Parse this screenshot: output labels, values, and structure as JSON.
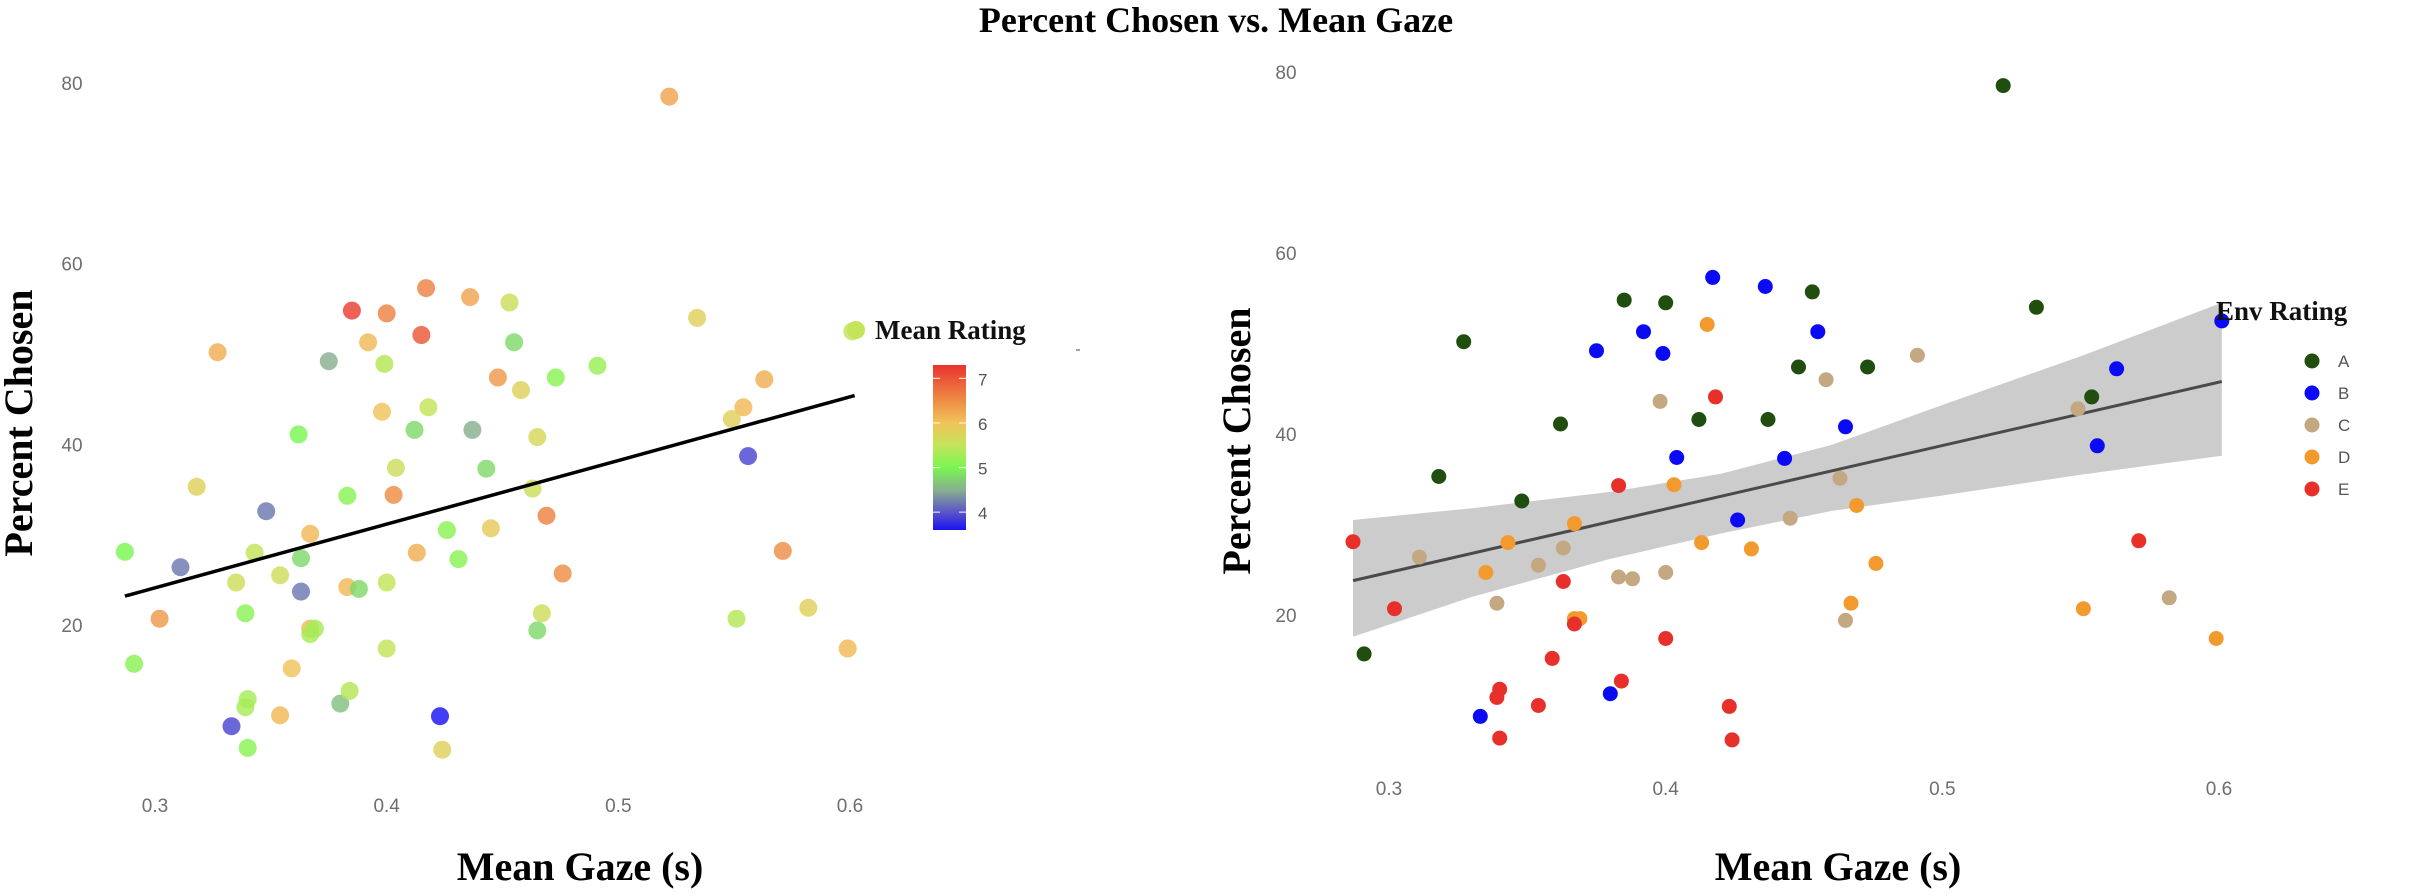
{
  "figure": {
    "title": "Percent Chosen vs. Mean Gaze"
  },
  "chart_data": [
    {
      "id": "left",
      "type": "scatter",
      "title": "",
      "xlabel": "Mean Gaze (s)",
      "ylabel": "Percent Chosen",
      "xlim": [
        0.3,
        0.6
      ],
      "ylim": [
        20,
        80
      ],
      "x_ticks": [
        "0.3",
        "0.4",
        "0.5",
        "0.6"
      ],
      "y_ticks": [
        "20",
        "40",
        "60",
        "80"
      ],
      "grid": false,
      "color_by": "rating",
      "legend": {
        "title": "Mean Rating",
        "type": "colorbar",
        "placement": "right",
        "range": [
          3.6,
          7.3
        ],
        "ticks": [
          "4",
          "5",
          "6",
          "7"
        ],
        "stops": [
          {
            "value": 3.6,
            "color": "#1a12f0"
          },
          {
            "value": 4.0,
            "color": "#5a55c8"
          },
          {
            "value": 4.5,
            "color": "#88b08e"
          },
          {
            "value": 5.0,
            "color": "#7af552"
          },
          {
            "value": 5.5,
            "color": "#c4e45a"
          },
          {
            "value": 6.0,
            "color": "#f0c35a"
          },
          {
            "value": 6.5,
            "color": "#ee8d46"
          },
          {
            "value": 7.3,
            "color": "#e8332e"
          }
        ]
      },
      "fit_line": {
        "x": [
          0.287,
          0.602
        ],
        "y": [
          23.2,
          45.4
        ],
        "color": "#000000"
      }
    },
    {
      "id": "right",
      "type": "scatter",
      "title": "",
      "xlabel": "Mean Gaze (s)",
      "ylabel": "Percent Chosen",
      "xlim": [
        0.3,
        0.6
      ],
      "ylim": [
        20,
        80
      ],
      "x_ticks": [
        "0.3",
        "0.4",
        "0.5",
        "0.6"
      ],
      "y_ticks": [
        "20",
        "40",
        "60",
        "80"
      ],
      "grid": false,
      "color_by": "env",
      "legend": {
        "title": "Env Rating",
        "type": "categorical",
        "placement": "right",
        "entries": [
          {
            "label": "A",
            "color": "#1f4e0f"
          },
          {
            "label": "B",
            "color": "#0a0af5"
          },
          {
            "label": "C",
            "color": "#c4a882"
          },
          {
            "label": "D",
            "color": "#f39a2e"
          },
          {
            "label": "E",
            "color": "#e8302a"
          }
        ]
      },
      "fit_line": {
        "x": [
          0.287,
          0.601
        ],
        "y": [
          23.8,
          45.8
        ],
        "color": "#4a4a4a"
      },
      "confidence_band": {
        "x": [
          0.287,
          0.33,
          0.38,
          0.42,
          0.46,
          0.5,
          0.55,
          0.601
        ],
        "lower": [
          17.6,
          22.0,
          26.2,
          29.0,
          31.5,
          33.2,
          35.5,
          37.6
        ],
        "upper": [
          30.5,
          31.8,
          33.6,
          35.6,
          38.8,
          43.2,
          48.6,
          54.5
        ],
        "color": "#cccccc"
      }
    }
  ],
  "points": [
    {
      "x": 0.522,
      "y": 78.5,
      "env": "A",
      "rating": 6.3
    },
    {
      "x": 0.534,
      "y": 54.0,
      "env": "A",
      "rating": 5.8
    },
    {
      "x": 0.453,
      "y": 55.7,
      "env": "A",
      "rating": 5.6
    },
    {
      "x": 0.385,
      "y": 54.8,
      "env": "A",
      "rating": 7.2
    },
    {
      "x": 0.4,
      "y": 54.5,
      "env": "A",
      "rating": 6.6
    },
    {
      "x": 0.327,
      "y": 50.2,
      "env": "A",
      "rating": 6.2
    },
    {
      "x": 0.448,
      "y": 47.4,
      "env": "A",
      "rating": 6.4
    },
    {
      "x": 0.473,
      "y": 47.4,
      "env": "A",
      "rating": 5.1
    },
    {
      "x": 0.412,
      "y": 41.6,
      "env": "A",
      "rating": 4.8
    },
    {
      "x": 0.437,
      "y": 41.6,
      "env": "A",
      "rating": 4.5
    },
    {
      "x": 0.362,
      "y": 41.1,
      "env": "A",
      "rating": 5.0
    },
    {
      "x": 0.318,
      "y": 35.3,
      "env": "A",
      "rating": 5.8
    },
    {
      "x": 0.348,
      "y": 32.6,
      "env": "A",
      "rating": 4.2
    },
    {
      "x": 0.554,
      "y": 44.1,
      "env": "A",
      "rating": 6.1
    },
    {
      "x": 0.291,
      "y": 15.7,
      "env": "A",
      "rating": 5.1
    },
    {
      "x": 0.417,
      "y": 57.3,
      "env": "B",
      "rating": 6.6
    },
    {
      "x": 0.436,
      "y": 56.3,
      "env": "B",
      "rating": 6.3
    },
    {
      "x": 0.392,
      "y": 51.3,
      "env": "B",
      "rating": 6.1
    },
    {
      "x": 0.455,
      "y": 51.3,
      "env": "B",
      "rating": 4.8
    },
    {
      "x": 0.375,
      "y": 49.2,
      "env": "B",
      "rating": 4.5
    },
    {
      "x": 0.399,
      "y": 48.9,
      "env": "B",
      "rating": 5.4
    },
    {
      "x": 0.601,
      "y": 52.5,
      "env": "B",
      "rating": 5.5
    },
    {
      "x": 0.563,
      "y": 47.2,
      "env": "B",
      "rating": 6.2
    },
    {
      "x": 0.465,
      "y": 40.8,
      "env": "B",
      "rating": 5.7
    },
    {
      "x": 0.404,
      "y": 37.4,
      "env": "B",
      "rating": 5.6
    },
    {
      "x": 0.443,
      "y": 37.3,
      "env": "B",
      "rating": 4.8
    },
    {
      "x": 0.556,
      "y": 38.7,
      "env": "B",
      "rating": 3.9
    },
    {
      "x": 0.426,
      "y": 30.5,
      "env": "B",
      "rating": 5.1
    },
    {
      "x": 0.38,
      "y": 11.3,
      "env": "B",
      "rating": 4.6
    },
    {
      "x": 0.333,
      "y": 8.8,
      "env": "B",
      "rating": 3.9
    },
    {
      "x": 0.491,
      "y": 48.7,
      "env": "C",
      "rating": 5.2
    },
    {
      "x": 0.458,
      "y": 46.0,
      "env": "C",
      "rating": 5.8
    },
    {
      "x": 0.398,
      "y": 43.6,
      "env": "C",
      "rating": 6.0
    },
    {
      "x": 0.549,
      "y": 42.8,
      "env": "C",
      "rating": 5.8
    },
    {
      "x": 0.463,
      "y": 35.1,
      "env": "C",
      "rating": 5.6
    },
    {
      "x": 0.445,
      "y": 30.7,
      "env": "C",
      "rating": 5.9
    },
    {
      "x": 0.363,
      "y": 27.4,
      "env": "C",
      "rating": 4.8
    },
    {
      "x": 0.311,
      "y": 26.4,
      "env": "C",
      "rating": 4.2
    },
    {
      "x": 0.383,
      "y": 24.2,
      "env": "C",
      "rating": 6.1
    },
    {
      "x": 0.388,
      "y": 24.0,
      "env": "C",
      "rating": 4.8
    },
    {
      "x": 0.4,
      "y": 24.7,
      "env": "C",
      "rating": 5.5
    },
    {
      "x": 0.339,
      "y": 21.3,
      "env": "C",
      "rating": 5.1
    },
    {
      "x": 0.465,
      "y": 19.4,
      "env": "C",
      "rating": 4.8
    },
    {
      "x": 0.582,
      "y": 21.9,
      "env": "C",
      "rating": 5.8
    },
    {
      "x": 0.354,
      "y": 25.5,
      "env": "C",
      "rating": 5.6
    },
    {
      "x": 0.415,
      "y": 52.1,
      "env": "D",
      "rating": 7.0
    },
    {
      "x": 0.403,
      "y": 34.4,
      "env": "D",
      "rating": 6.5
    },
    {
      "x": 0.367,
      "y": 30.1,
      "env": "D",
      "rating": 6.1
    },
    {
      "x": 0.343,
      "y": 28.0,
      "env": "D",
      "rating": 5.5
    },
    {
      "x": 0.413,
      "y": 28.0,
      "env": "D",
      "rating": 6.2
    },
    {
      "x": 0.431,
      "y": 27.3,
      "env": "D",
      "rating": 5.1
    },
    {
      "x": 0.469,
      "y": 32.1,
      "env": "D",
      "rating": 6.6
    },
    {
      "x": 0.476,
      "y": 25.7,
      "env": "D",
      "rating": 6.5
    },
    {
      "x": 0.335,
      "y": 24.7,
      "env": "D",
      "rating": 5.6
    },
    {
      "x": 0.467,
      "y": 21.3,
      "env": "D",
      "rating": 5.6
    },
    {
      "x": 0.551,
      "y": 20.7,
      "env": "D",
      "rating": 5.4
    },
    {
      "x": 0.367,
      "y": 19.6,
      "env": "D",
      "rating": 6.1
    },
    {
      "x": 0.369,
      "y": 19.6,
      "env": "D",
      "rating": 5.3
    },
    {
      "x": 0.599,
      "y": 17.4,
      "env": "D",
      "rating": 6.1
    },
    {
      "x": 0.418,
      "y": 44.1,
      "env": "E",
      "rating": 5.5
    },
    {
      "x": 0.383,
      "y": 34.3,
      "env": "E",
      "rating": 5.1
    },
    {
      "x": 0.287,
      "y": 28.1,
      "env": "E",
      "rating": 5.0
    },
    {
      "x": 0.571,
      "y": 28.2,
      "env": "E",
      "rating": 6.5
    },
    {
      "x": 0.363,
      "y": 23.7,
      "env": "E",
      "rating": 4.2
    },
    {
      "x": 0.302,
      "y": 20.7,
      "env": "E",
      "rating": 6.4
    },
    {
      "x": 0.367,
      "y": 19.0,
      "env": "E",
      "rating": 5.3
    },
    {
      "x": 0.4,
      "y": 17.4,
      "env": "E",
      "rating": 5.5
    },
    {
      "x": 0.359,
      "y": 15.2,
      "env": "E",
      "rating": 6.0
    },
    {
      "x": 0.384,
      "y": 12.7,
      "env": "E",
      "rating": 5.4
    },
    {
      "x": 0.34,
      "y": 11.8,
      "env": "E",
      "rating": 5.3
    },
    {
      "x": 0.339,
      "y": 10.9,
      "env": "E",
      "rating": 5.3
    },
    {
      "x": 0.354,
      "y": 10.0,
      "env": "E",
      "rating": 6.1
    },
    {
      "x": 0.423,
      "y": 9.9,
      "env": "E",
      "rating": 3.6
    },
    {
      "x": 0.34,
      "y": 6.4,
      "env": "E",
      "rating": 5.1
    },
    {
      "x": 0.424,
      "y": 6.2,
      "env": "E",
      "rating": 5.8
    }
  ]
}
